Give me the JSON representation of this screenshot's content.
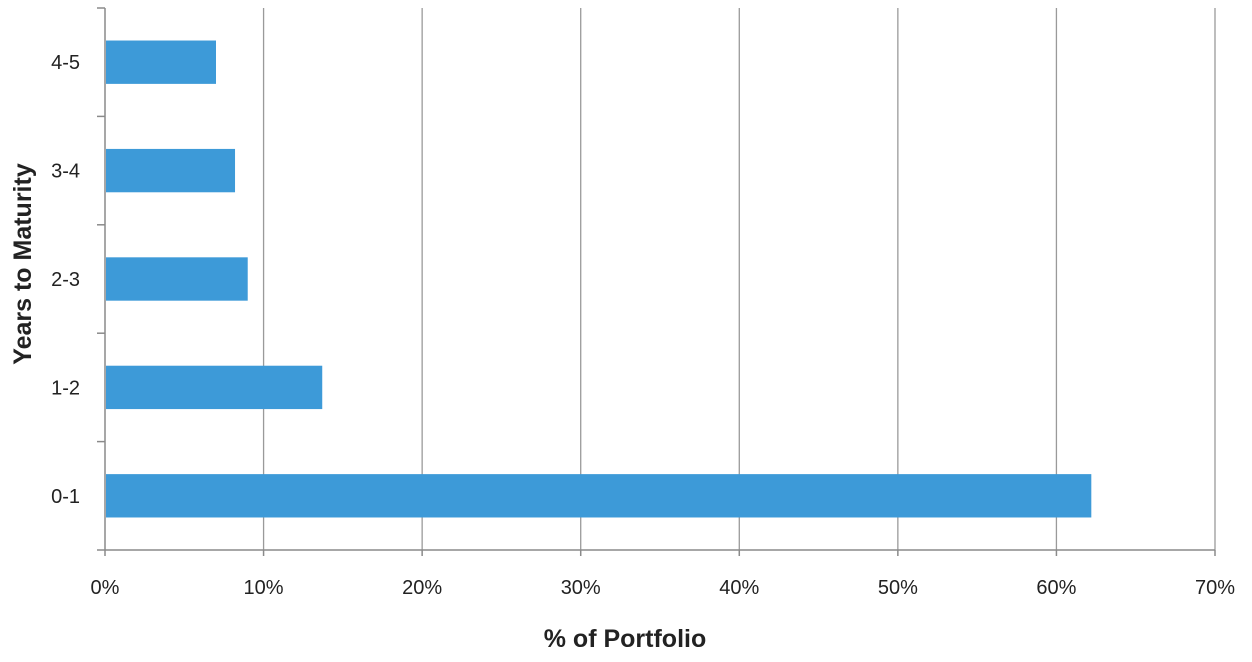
{
  "chart_data": {
    "type": "bar",
    "orientation": "horizontal",
    "categories": [
      "4-5",
      "3-4",
      "2-3",
      "1-2",
      "0-1"
    ],
    "values": [
      0.07,
      0.082,
      0.09,
      0.137,
      0.622
    ],
    "xlabel": "% of Portfolio",
    "ylabel": "Years to Maturity",
    "xlim": [
      0,
      0.7
    ],
    "x_ticks": [
      0,
      0.1,
      0.2,
      0.3,
      0.4,
      0.5,
      0.6,
      0.7
    ],
    "x_tick_labels": [
      "0%",
      "10%",
      "20%",
      "30%",
      "40%",
      "50%",
      "60%",
      "70%"
    ],
    "grid": "vertical",
    "legend": "none",
    "bar_color": "#3d9ad8"
  }
}
